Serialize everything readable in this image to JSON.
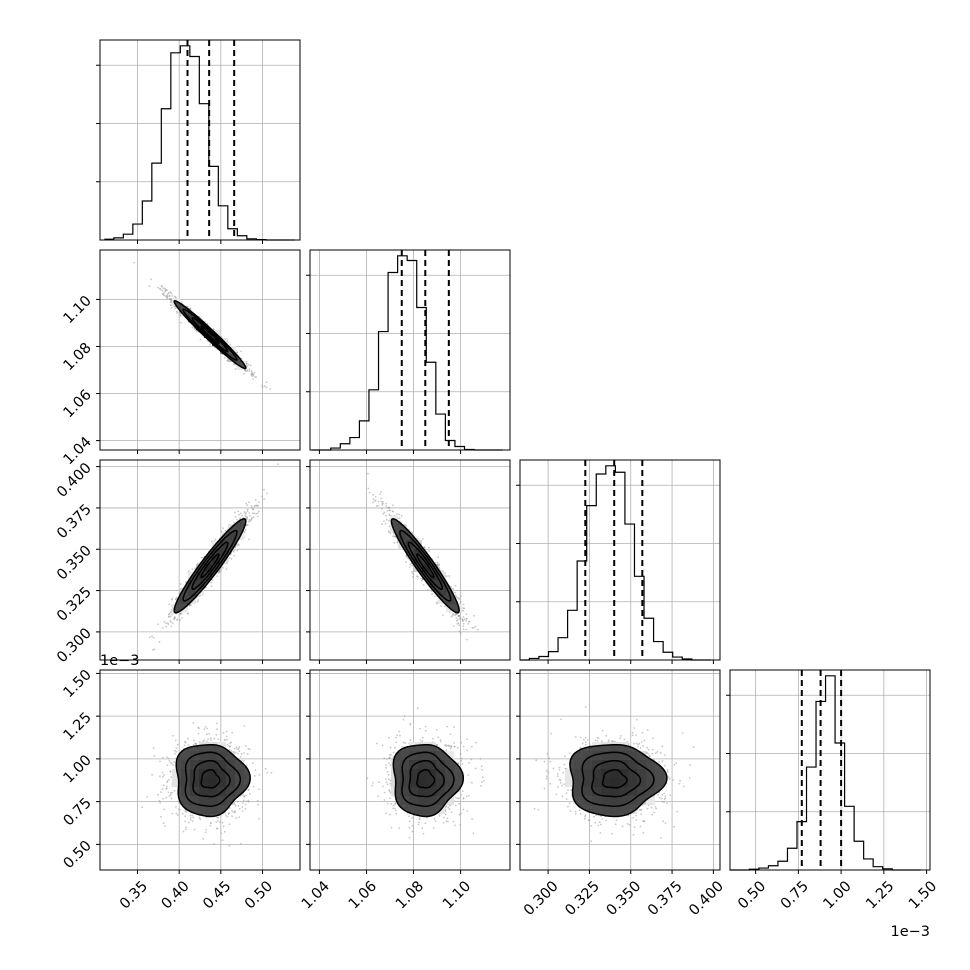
{
  "chart_data": {
    "type": "corner",
    "grid": true,
    "params": [
      {
        "range": [
          0.305,
          0.545
        ],
        "ticks": [
          "0.35",
          "0.40",
          "0.45",
          "0.50"
        ],
        "tick_values": [
          0.35,
          0.4,
          0.45,
          0.5
        ],
        "quantiles": [
          0.41,
          0.436,
          0.466
        ]
      },
      {
        "range": [
          1.036,
          1.121
        ],
        "ticks": [
          "1.04",
          "1.06",
          "1.08",
          "1.10"
        ],
        "tick_values": [
          1.04,
          1.06,
          1.08,
          1.1
        ],
        "quantiles": [
          1.075,
          1.085,
          1.095
        ]
      },
      {
        "range": [
          0.283,
          0.404
        ],
        "ticks": [
          "0.300",
          "0.325",
          "0.350",
          "0.375",
          "0.400"
        ],
        "tick_values": [
          0.3,
          0.325,
          0.35,
          0.375,
          0.4
        ],
        "quantiles": [
          0.3225,
          0.34,
          0.357
        ]
      },
      {
        "range": [
          0.00035,
          0.00152
        ],
        "ticks": [
          "0.50",
          "0.75",
          "1.00",
          "1.25",
          "1.50"
        ],
        "tick_values": [
          0.0005,
          0.00075,
          0.001,
          0.00125,
          0.0015
        ],
        "quantiles": [
          0.00077,
          0.00088,
          0.001
        ],
        "offset": "1e−3"
      }
    ],
    "histograms": [
      {
        "param": 0,
        "edges_start": 0.3102,
        "bin_width": 0.0114,
        "counts": [
          4,
          11,
          30,
          82,
          201,
          396,
          676,
          964,
          1000,
          945,
          702,
          379,
          176,
          58,
          22,
          6,
          2,
          0,
          0,
          0
        ]
      },
      {
        "param": 1,
        "edges_start": 1.0367,
        "bin_width": 0.00406,
        "counts": [
          0,
          0,
          10,
          32,
          64,
          150,
          310,
          610,
          914,
          1000,
          976,
          734,
          452,
          185,
          49,
          18,
          3,
          0,
          0,
          0
        ]
      },
      {
        "param": 2,
        "edges_start": 0.2829,
        "bin_width": 0.00578,
        "counts": [
          0,
          8,
          18,
          43,
          115,
          256,
          510,
          795,
          958,
          1000,
          967,
          700,
          431,
          215,
          95,
          40,
          15,
          5,
          0,
          0
        ]
      },
      {
        "param": 3,
        "edges_start": 0.000352,
        "bin_width": 5.57e-05,
        "counts": [
          0,
          0,
          4,
          10,
          22,
          45,
          112,
          249,
          530,
          868,
          1000,
          654,
          328,
          148,
          57,
          17,
          6,
          0,
          0,
          0
        ]
      }
    ],
    "pairs": [
      {
        "x": 0,
        "y": 1,
        "rho": -0.98,
        "mean": [
          0.437,
          1.085
        ],
        "sd": [
          0.0215,
          0.0072
        ]
      },
      {
        "x": 0,
        "y": 2,
        "rho": 0.95,
        "mean": [
          0.437,
          0.34
        ],
        "sd": [
          0.0215,
          0.0142
        ]
      },
      {
        "x": 0,
        "y": 3,
        "rho": 0.0,
        "mean": [
          0.437,
          0.00088
        ],
        "sd": [
          0.0215,
          0.000105
        ]
      },
      {
        "x": 1,
        "y": 2,
        "rho": -0.95,
        "mean": [
          1.085,
          0.34
        ],
        "sd": [
          0.0072,
          0.0142
        ]
      },
      {
        "x": 1,
        "y": 3,
        "rho": 0.0,
        "mean": [
          1.085,
          0.00088
        ],
        "sd": [
          0.0072,
          0.000105
        ]
      },
      {
        "x": 2,
        "y": 3,
        "rho": 0.0,
        "mean": [
          0.34,
          0.00088
        ],
        "sd": [
          0.0142,
          0.000105
        ]
      }
    ]
  }
}
